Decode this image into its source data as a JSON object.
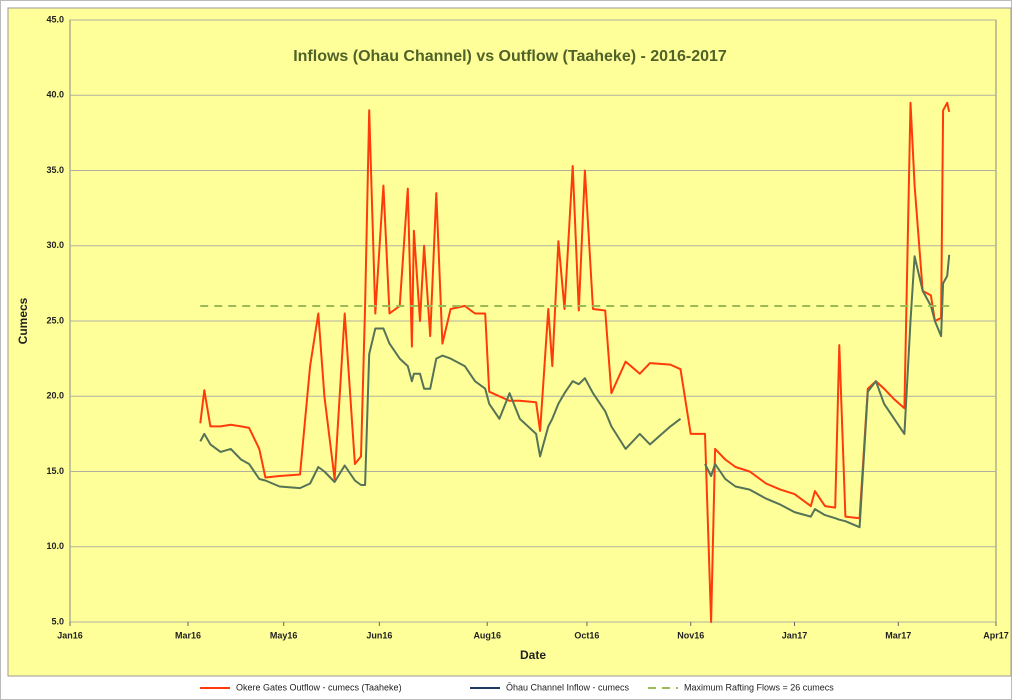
{
  "chart_data": {
    "type": "line",
    "title": "Inflows (Ohau Channel) vs Outflow (Taaheke) - 2016-2017",
    "xlabel": "Date",
    "ylabel": "Cumecs",
    "x": [
      64,
      66,
      69,
      74,
      79,
      84,
      88,
      93,
      96,
      103,
      113,
      118,
      122,
      125,
      130,
      135,
      140,
      143,
      145,
      147,
      150,
      154,
      157,
      162,
      166,
      168,
      169,
      172,
      174,
      177,
      180,
      183,
      187,
      194,
      199,
      204,
      206,
      211,
      216,
      221,
      229,
      231,
      235,
      237,
      240,
      243,
      247,
      250,
      253,
      257,
      263,
      266,
      273,
      280,
      285,
      295,
      300,
      305,
      312,
      315,
      317,
      322,
      327,
      334,
      342,
      349,
      356,
      364,
      366,
      371,
      376,
      378,
      381,
      388,
      392,
      396,
      400,
      405,
      410,
      413,
      415,
      419,
      423,
      425,
      428,
      429,
      431,
      432
    ],
    "series": [
      {
        "name": "Okere Gates Outflow - cumecs  (Taaheke)",
        "color": "#ff3b0a",
        "values": [
          18.2,
          20.4,
          18.0,
          18.0,
          18.1,
          18.0,
          17.9,
          16.5,
          14.6,
          14.7,
          14.8,
          22.0,
          25.5,
          20.0,
          14.5,
          25.5,
          15.5,
          16.0,
          26.0,
          39.0,
          25.5,
          34.0,
          25.5,
          26.0,
          33.8,
          23.3,
          31.0,
          25.0,
          30.0,
          24.0,
          33.5,
          23.5,
          25.8,
          26.0,
          25.5,
          25.5,
          20.3,
          20.0,
          19.7,
          19.7,
          19.6,
          17.7,
          25.8,
          22.0,
          30.3,
          25.8,
          35.3,
          25.7,
          35.0,
          25.8,
          25.7,
          20.2,
          22.3,
          21.5,
          22.2,
          22.1,
          21.8,
          17.5,
          17.5,
          5.0,
          16.5,
          15.8,
          15.3,
          15.0,
          14.2,
          13.8,
          13.5,
          12.7,
          13.7,
          12.7,
          12.6,
          23.4,
          12.0,
          11.9,
          20.5,
          21.0,
          20.5,
          19.8,
          19.2,
          39.5,
          34.0,
          27.0,
          26.7,
          25.0,
          25.2,
          39.0,
          39.5,
          38.9
        ]
      },
      {
        "name": "Ōhau Channel Inflow - cumecs",
        "color": "#557356",
        "legend_color": "#203864",
        "values": [
          17.0,
          17.5,
          16.8,
          16.3,
          16.5,
          15.8,
          15.5,
          14.5,
          14.4,
          14.0,
          13.9,
          14.2,
          15.3,
          15.0,
          14.3,
          15.4,
          14.4,
          14.1,
          14.1,
          22.8,
          24.5,
          24.5,
          23.5,
          22.5,
          22.0,
          21.0,
          21.5,
          21.5,
          20.5,
          20.5,
          22.5,
          22.7,
          22.5,
          22.0,
          21.0,
          20.5,
          19.5,
          18.5,
          20.2,
          18.5,
          17.5,
          16.0,
          18.0,
          18.5,
          19.5,
          20.2,
          21.0,
          20.8,
          21.2,
          20.2,
          19.0,
          18.0,
          16.5,
          17.5,
          16.8,
          18.0,
          18.5,
          null,
          15.5,
          14.7,
          15.5,
          14.5,
          14.0,
          13.8,
          13.2,
          12.8,
          12.3,
          12.0,
          12.5,
          12.1,
          11.9,
          11.8,
          11.7,
          11.3,
          20.3,
          21.0,
          19.5,
          18.5,
          17.5,
          25.0,
          29.3,
          27.0,
          26.0,
          25.0,
          24.0,
          27.5,
          28.0,
          29.4
        ]
      }
    ],
    "hline": {
      "name": "Maximum Rafting Flows = 26 cumecs",
      "value": 26,
      "color": "#9bbb59",
      "dashed": true
    },
    "xlim": [
      0,
      455
    ],
    "xticks": [
      {
        "value": 0,
        "label": "Jan16"
      },
      {
        "value": 58,
        "label": "Mar16"
      },
      {
        "value": 105,
        "label": "May16"
      },
      {
        "value": 152,
        "label": "Jun16"
      },
      {
        "value": 205,
        "label": "Aug16"
      },
      {
        "value": 254,
        "label": "Oct16"
      },
      {
        "value": 305,
        "label": "Nov16"
      },
      {
        "value": 356,
        "label": "Jan17"
      },
      {
        "value": 407,
        "label": "Mar17"
      },
      {
        "value": 455,
        "label": "Apr17"
      }
    ],
    "ylim": [
      5,
      45
    ],
    "yticks": [
      {
        "value": 5,
        "label": "5.0"
      },
      {
        "value": 10,
        "label": "10.0"
      },
      {
        "value": 15,
        "label": "15.0"
      },
      {
        "value": 20,
        "label": "20.0"
      },
      {
        "value": 25,
        "label": "25.0"
      },
      {
        "value": 30,
        "label": "30.0"
      },
      {
        "value": 35,
        "label": "35.0"
      },
      {
        "value": 40,
        "label": "40.0"
      },
      {
        "value": 45,
        "label": "45.0"
      }
    ],
    "grid": true,
    "legend": "bottom",
    "background": "#ffff99"
  }
}
